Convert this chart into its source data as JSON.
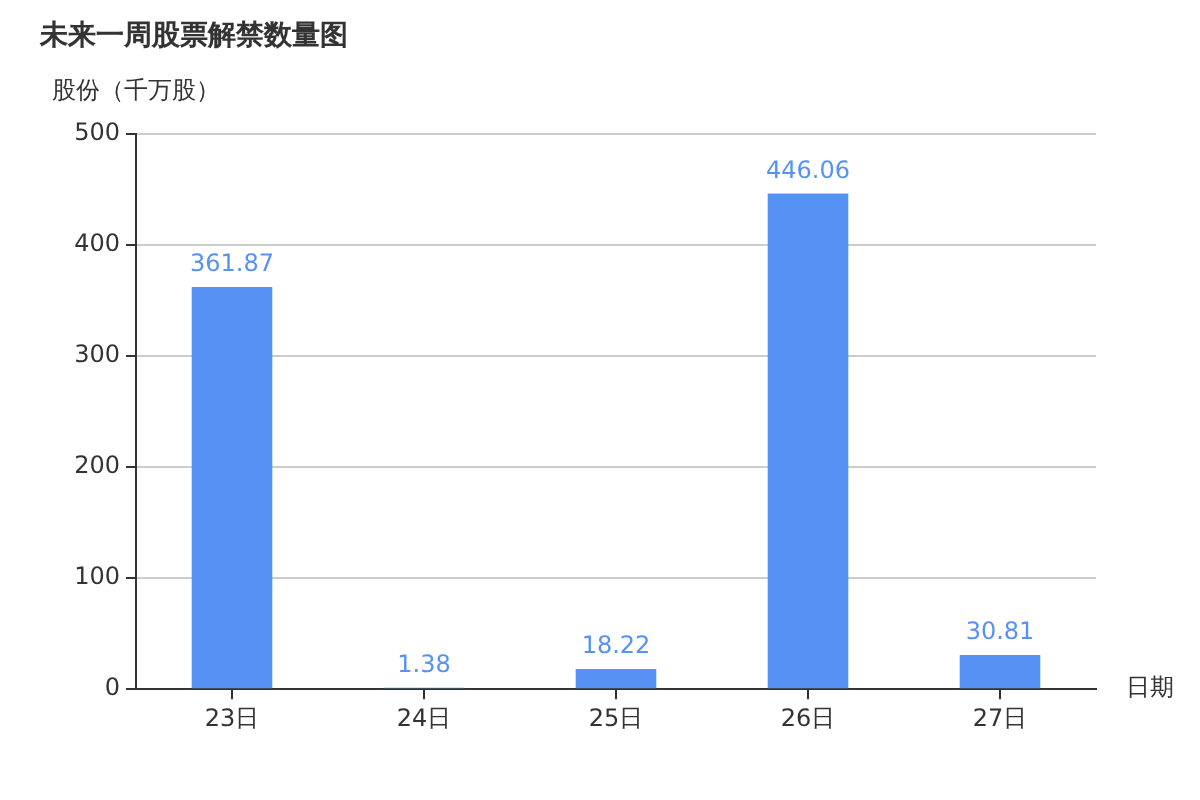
{
  "chart_data": {
    "type": "bar",
    "title": "未来一周股票解禁数量图",
    "ylabel": "股份（千万股）",
    "xlabel": "日期",
    "categories": [
      "23日",
      "24日",
      "25日",
      "26日",
      "27日"
    ],
    "values": [
      361.87,
      1.38,
      18.22,
      446.06,
      30.81
    ],
    "color": "#5692f4",
    "ylim": [
      0,
      500
    ],
    "yticks": [
      0,
      100,
      200,
      300,
      400,
      500
    ],
    "grid": "y",
    "data_labels": true,
    "legend": false
  }
}
